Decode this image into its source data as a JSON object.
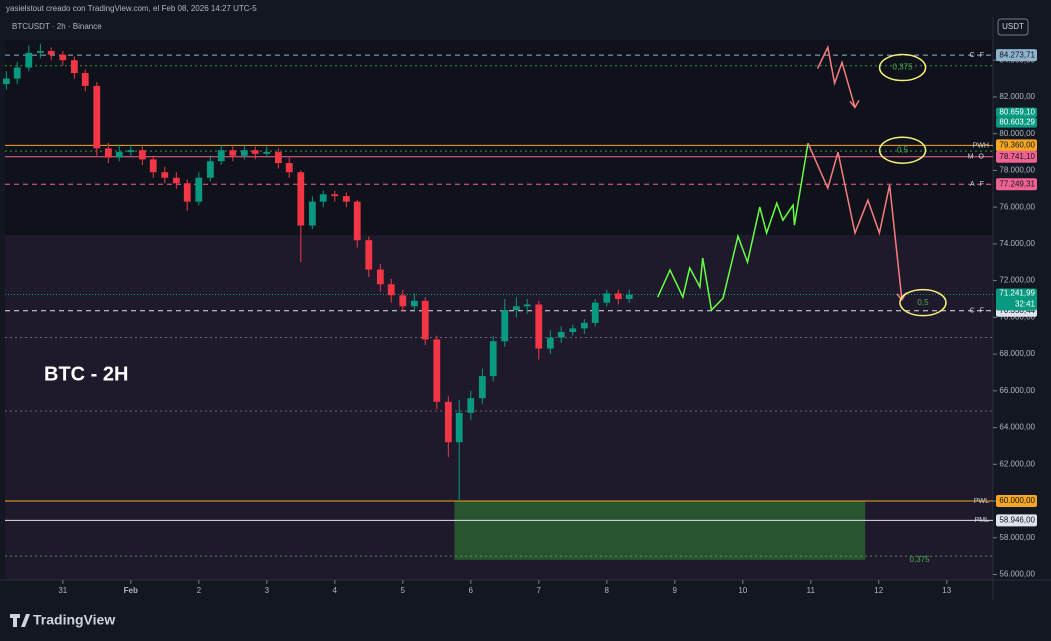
{
  "header": {
    "attribution": "yasielstout creado con TradingView.com, el Feb 08, 2026 14:27 UTC-5",
    "symbol": "BTCUSDT · 2h · Binance",
    "currency": "USDT",
    "brand": "TradingView"
  },
  "chart_data": {
    "type": "candlestick",
    "title": "BTC - 2H",
    "x": [
      -0.83,
      -0.67,
      -0.5,
      -0.33,
      -0.17,
      0,
      0.17,
      0.33,
      0.5,
      0.67,
      0.83,
      1,
      1.17,
      1.33,
      1.5,
      1.67,
      1.83,
      2,
      2.17,
      2.33,
      2.5,
      2.67,
      2.83,
      3,
      3.17,
      3.33,
      3.5,
      3.67,
      3.83,
      4,
      4.17,
      4.33,
      4.5,
      4.67,
      4.83,
      5,
      5.17,
      5.33,
      5.5,
      5.67,
      5.83,
      6,
      6.17,
      6.33,
      6.5,
      6.67,
      6.83,
      7,
      7.17,
      7.33,
      7.5,
      7.67,
      7.83,
      8,
      8.17,
      8.33
    ],
    "open": [
      82700,
      83000,
      83600,
      84400,
      84500,
      84300,
      84000,
      83300,
      82600,
      79200,
      78700,
      79000,
      79100,
      78600,
      77900,
      77600,
      77300,
      76300,
      77600,
      78500,
      79100,
      78800,
      79100,
      78900,
      79000,
      78400,
      77900,
      75000,
      76300,
      76700,
      76600,
      76300,
      74200,
      72600,
      71800,
      71200,
      70600,
      70900,
      68800,
      65400,
      63200,
      64800,
      65600,
      66800,
      68700,
      70400,
      70600,
      70700,
      68300,
      68900,
      69200,
      69400,
      69700,
      70800,
      71300,
      71000
    ],
    "high": [
      83400,
      83900,
      84800,
      84900,
      84700,
      84500,
      84200,
      83500,
      82800,
      79500,
      79400,
      79400,
      79300,
      78800,
      78200,
      77900,
      77500,
      77900,
      78800,
      79400,
      79300,
      79400,
      79300,
      79300,
      79200,
      78700,
      78000,
      76600,
      76900,
      76900,
      76800,
      76400,
      74400,
      72900,
      72100,
      71500,
      71300,
      71100,
      69000,
      65700,
      65500,
      66000,
      67200,
      69000,
      71000,
      71100,
      71000,
      70900,
      69300,
      69500,
      69600,
      69900,
      71000,
      71500,
      71500,
      71500
    ],
    "low": [
      82400,
      82700,
      83400,
      84100,
      84000,
      83700,
      83000,
      82300,
      78800,
      78400,
      78500,
      78800,
      78300,
      77600,
      77300,
      77000,
      75800,
      76100,
      77400,
      78300,
      78500,
      78600,
      78600,
      78700,
      78100,
      77600,
      73000,
      74800,
      76000,
      76300,
      76000,
      73800,
      72200,
      71400,
      70800,
      70300,
      70400,
      68500,
      65000,
      62400,
      60000,
      64400,
      65300,
      66500,
      68400,
      70000,
      70200,
      67700,
      68000,
      68600,
      69000,
      69100,
      69500,
      70600,
      70700,
      70800
    ],
    "close": [
      83000,
      83600,
      84400,
      84500,
      84300,
      84000,
      83300,
      82600,
      79200,
      78700,
      79000,
      79100,
      78600,
      77900,
      77600,
      77300,
      76300,
      77600,
      78500,
      79100,
      78800,
      79100,
      78900,
      79000,
      78400,
      77900,
      75000,
      76300,
      76700,
      76600,
      76300,
      74200,
      72600,
      71800,
      71200,
      70600,
      70900,
      68800,
      65400,
      63200,
      64800,
      65600,
      66800,
      68700,
      70400,
      70600,
      70700,
      68300,
      68900,
      69200,
      69400,
      69700,
      70800,
      71300,
      71000,
      71241.99
    ],
    "up_color": "#089981",
    "down_color": "#f23645",
    "xlim": [
      -0.85,
      13.68
    ],
    "xticks": [
      {
        "value": 0,
        "label": "31"
      },
      {
        "value": 1,
        "label": "Feb"
      },
      2,
      3,
      4,
      5,
      6,
      7,
      8,
      9,
      10,
      11,
      12,
      13
    ],
    "ylim": [
      55700,
      85100
    ],
    "yticks": [
      {
        "value": 56000,
        "label": "56.000,00"
      },
      {
        "value": 58000,
        "label": "58.000,00"
      },
      {
        "value": 60000,
        "label": "60.000,00"
      },
      {
        "value": 62000,
        "label": "62.000,00"
      },
      {
        "value": 64000,
        "label": "64.000,00"
      },
      {
        "value": 66000,
        "label": "66.000,00"
      },
      {
        "value": 68000,
        "label": "68.000,00"
      },
      {
        "value": 70000,
        "label": "70.000,00"
      },
      {
        "value": 72000,
        "label": "72.000,00"
      },
      {
        "value": 74000,
        "label": "74.000,00"
      },
      {
        "value": 76000,
        "label": "76.000,00"
      },
      {
        "value": 78000,
        "label": "78.000,00"
      },
      {
        "value": 80000,
        "label": "80.000,00"
      },
      {
        "value": 82000,
        "label": "82.000,00"
      },
      {
        "value": 84000,
        "label": "84.000,00"
      }
    ],
    "levels": [
      {
        "name": "CF",
        "value": 84273.71,
        "value_label": "84.273,71",
        "color": "#8fb3cc",
        "style": "dashed"
      },
      {
        "name": "PWH",
        "value": 79360,
        "value_label": "79.360,00",
        "color": "#f5a623",
        "style": "solid"
      },
      {
        "name": "MO",
        "value": 78741.1,
        "value_label": "78.741,10",
        "color": "#f06292",
        "style": "solid"
      },
      {
        "name": "AF",
        "value": 77249.31,
        "value_label": "77.249,31",
        "color": "#f06292",
        "style": "dashed"
      },
      {
        "name": "CF",
        "value": 70358.44,
        "value_label": "70.358,44",
        "color": "#e0e3eb",
        "style": "dashed"
      },
      {
        "name": "PWL",
        "value": 60000,
        "value_label": "60.000,00",
        "color": "#f5a623",
        "style": "solid"
      },
      {
        "name": "PML",
        "value": 58946,
        "value_label": "58.946,00",
        "color": "#e0e3eb",
        "style": "solid"
      }
    ],
    "price_labels": [
      {
        "value": 80659.1,
        "value_label": "80.659,10",
        "color": "#089981"
      },
      {
        "value": 80603.29,
        "value_label": "80.603,29",
        "color": "#089981"
      },
      {
        "value": 71241.99,
        "value_label": "71.241,99",
        "countdown": "32:41",
        "color": "#089981"
      }
    ],
    "guides": [
      {
        "value": 83700,
        "color": "#4caf50"
      },
      {
        "value": 79050,
        "color": "#4caf50"
      },
      {
        "value": 68900,
        "color": "#787b86"
      },
      {
        "value": 64900,
        "color": "#787b86"
      },
      {
        "value": 57000,
        "color": "#4caf50"
      }
    ],
    "zone": {
      "x": [
        5.76,
        11.8
      ],
      "values": [
        56800,
        60000
      ],
      "color": "#2e7d32"
    },
    "projections": [
      {
        "color": "#66ff44",
        "x": [
          8.75,
          8.93,
          9.12,
          9.22,
          9.37,
          9.41,
          9.54,
          9.71,
          9.93,
          10.07,
          10.25,
          10.35,
          10.5,
          10.59,
          10.74,
          10.76,
          10.96
        ],
        "values": [
          71100,
          72580,
          71100,
          72690,
          71650,
          73230,
          70400,
          71050,
          74420,
          73010,
          76000,
          74590,
          76220,
          75290,
          76110,
          75020,
          79480
        ]
      },
      {
        "color": "#f77c80",
        "x": [
          10.96,
          11.25,
          11.4,
          11.65,
          11.84,
          12.01,
          12.16,
          12.34
        ],
        "values": [
          79480,
          77030,
          78990,
          74590,
          76380,
          74590,
          77200,
          70950
        ]
      },
      {
        "color": "#f77c80",
        "x": [
          11.1,
          11.25,
          11.35,
          11.46,
          11.65
        ],
        "values": [
          83550,
          84700,
          82740,
          83880,
          81430
        ]
      }
    ],
    "notes": [
      {
        "label": "0,375",
        "x": 12.35,
        "value": 83600,
        "circled": true
      },
      {
        "label": "0,5",
        "x": 12.35,
        "value": 79100,
        "circled": true
      },
      {
        "label": "0,5",
        "x": 12.65,
        "value": 70800,
        "circled": true
      },
      {
        "label": "0,375",
        "x": 12.6,
        "value": 56800,
        "circled": false
      }
    ]
  }
}
